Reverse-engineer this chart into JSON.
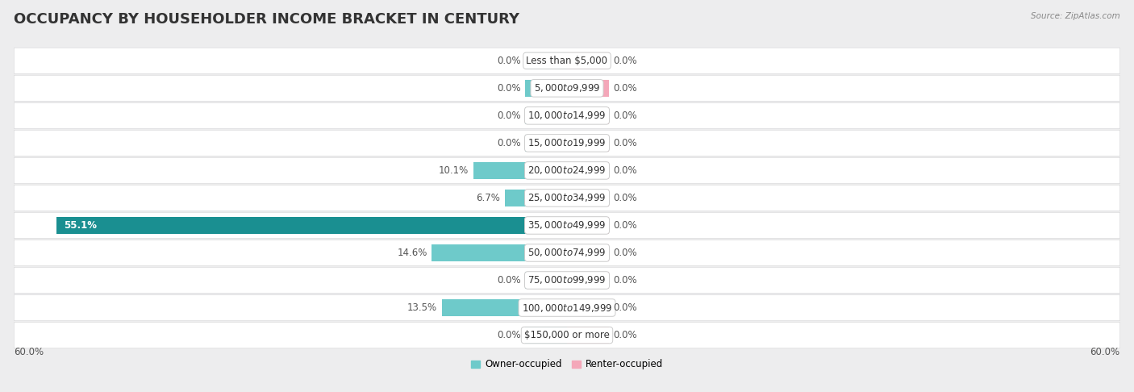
{
  "title": "OCCUPANCY BY HOUSEHOLDER INCOME BRACKET IN CENTURY",
  "source": "Source: ZipAtlas.com",
  "categories": [
    "Less than $5,000",
    "$5,000 to $9,999",
    "$10,000 to $14,999",
    "$15,000 to $19,999",
    "$20,000 to $24,999",
    "$25,000 to $34,999",
    "$35,000 to $49,999",
    "$50,000 to $74,999",
    "$75,000 to $99,999",
    "$100,000 to $149,999",
    "$150,000 or more"
  ],
  "owner_values": [
    0.0,
    0.0,
    0.0,
    0.0,
    10.1,
    6.7,
    55.1,
    14.6,
    0.0,
    13.5,
    0.0
  ],
  "renter_values": [
    0.0,
    0.0,
    0.0,
    0.0,
    0.0,
    0.0,
    0.0,
    0.0,
    0.0,
    0.0,
    0.0
  ],
  "owner_color_normal": "#6ecaca",
  "owner_color_highlight": "#1a8f91",
  "renter_color": "#f4a7b9",
  "xlim": 60.0,
  "min_bar_width": 4.5,
  "axis_label_left": "60.0%",
  "axis_label_right": "60.0%",
  "bg_color": "#ededee",
  "row_bg_color": "#e8e8ea",
  "bar_bg_color": "#ffffff",
  "title_fontsize": 13,
  "label_fontsize": 8.5,
  "cat_fontsize": 8.5,
  "bar_height": 0.62,
  "legend_owner": "Owner-occupied",
  "legend_renter": "Renter-occupied"
}
